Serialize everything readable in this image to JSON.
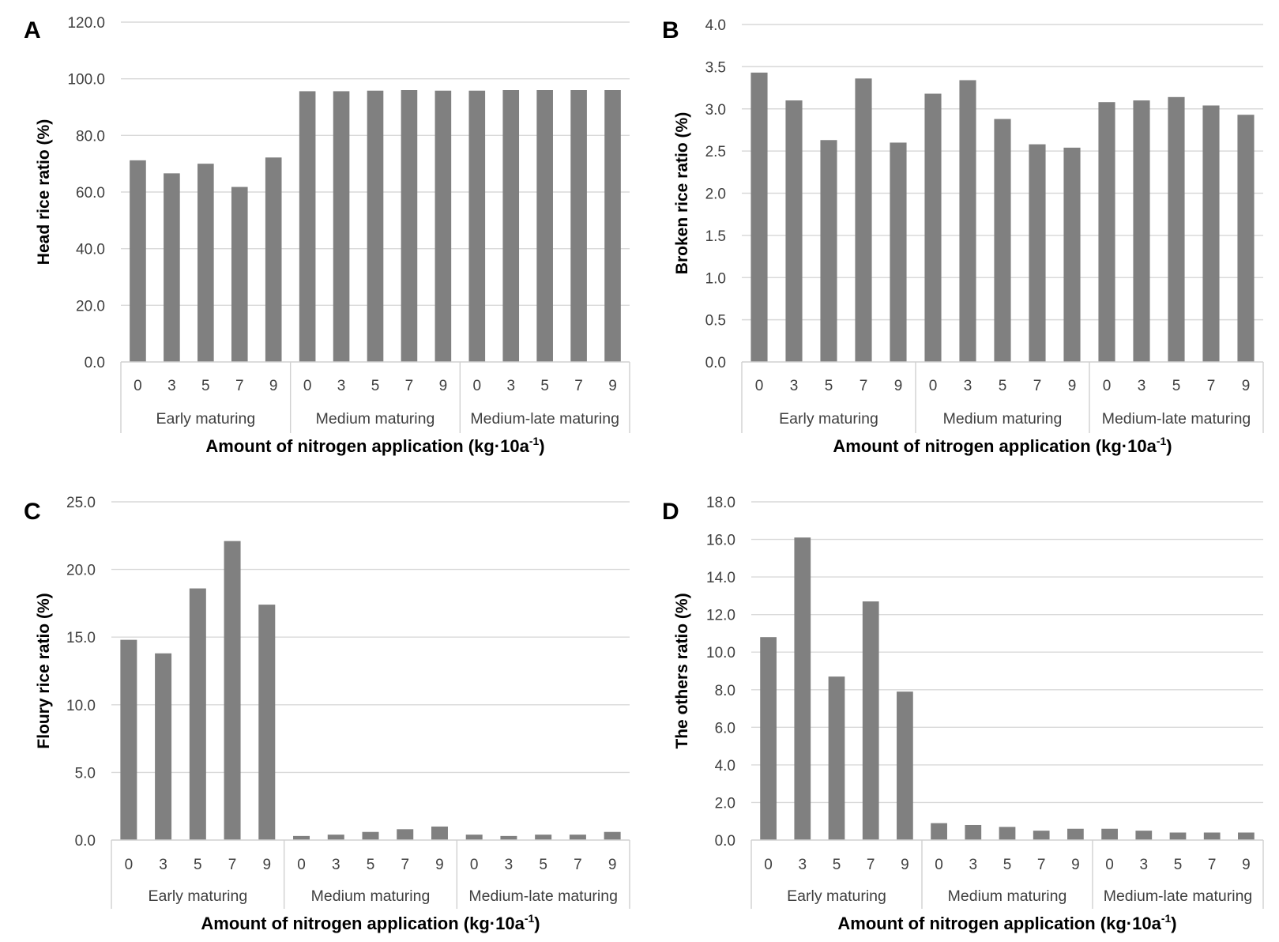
{
  "colors": {
    "bar": "#808080",
    "grid": "#d9d9d9",
    "axis": "#d0d0d0"
  },
  "chart_data": [
    {
      "panel": "A",
      "type": "bar",
      "categories": [
        "0",
        "3",
        "5",
        "7",
        "9",
        "0",
        "3",
        "5",
        "7",
        "9",
        "0",
        "3",
        "5",
        "7",
        "9"
      ],
      "groups": [
        "Early maturing",
        "Medium maturing",
        "Medium-late maturing"
      ],
      "values": [
        71.2,
        66.6,
        70.0,
        61.8,
        72.2,
        95.6,
        95.6,
        95.8,
        96.0,
        95.8,
        95.8,
        96.0,
        96.0,
        96.0,
        96.0
      ],
      "ylabel": "Head rice ratio (%)",
      "xlabel": "Amount of nitrogen application",
      "xlabel_unit_base": "(kg·10a",
      "xlabel_unit_exp": "-1",
      "xlabel_unit_close": ")",
      "ylim": [
        0,
        120
      ],
      "yticks": [
        "0.0",
        "20.0",
        "40.0",
        "60.0",
        "80.0",
        "100.0",
        "120.0"
      ],
      "grid": true
    },
    {
      "panel": "B",
      "type": "bar",
      "categories": [
        "0",
        "3",
        "5",
        "7",
        "9",
        "0",
        "3",
        "5",
        "7",
        "9",
        "0",
        "3",
        "5",
        "7",
        "9"
      ],
      "groups": [
        "Early maturing",
        "Medium maturing",
        "Medium-late maturing"
      ],
      "values": [
        3.43,
        3.1,
        2.63,
        3.36,
        2.6,
        3.18,
        3.34,
        2.88,
        2.58,
        2.54,
        3.08,
        3.1,
        3.14,
        3.04,
        2.93
      ],
      "ylabel": "Broken rice ratio (%)",
      "xlabel": "Amount of nitrogen application",
      "xlabel_unit_base": "(kg·10a",
      "xlabel_unit_exp": "-1",
      "xlabel_unit_close": ")",
      "ylim": [
        0,
        4
      ],
      "yticks": [
        "0.0",
        "0.5",
        "1.0",
        "1.5",
        "2.0",
        "2.5",
        "3.0",
        "3.5",
        "4.0"
      ],
      "grid": true
    },
    {
      "panel": "C",
      "type": "bar",
      "categories": [
        "0",
        "3",
        "5",
        "7",
        "9",
        "0",
        "3",
        "5",
        "7",
        "9",
        "0",
        "3",
        "5",
        "7",
        "9"
      ],
      "groups": [
        "Early maturing",
        "Medium maturing",
        "Medium-late maturing"
      ],
      "values": [
        14.8,
        13.8,
        18.6,
        22.1,
        17.4,
        0.3,
        0.4,
        0.6,
        0.8,
        1.0,
        0.4,
        0.3,
        0.4,
        0.4,
        0.6
      ],
      "ylabel": "Floury rice ratio (%)",
      "xlabel": "Amount of nitrogen application",
      "xlabel_unit_base": "(kg·10a",
      "xlabel_unit_exp": "-1",
      "xlabel_unit_close": ")",
      "ylim": [
        0,
        25
      ],
      "yticks": [
        "0.0",
        "5.0",
        "10.0",
        "15.0",
        "20.0",
        "25.0"
      ],
      "grid": true
    },
    {
      "panel": "D",
      "type": "bar",
      "categories": [
        "0",
        "3",
        "5",
        "7",
        "9",
        "0",
        "3",
        "5",
        "7",
        "9",
        "0",
        "3",
        "5",
        "7",
        "9"
      ],
      "groups": [
        "Early maturing",
        "Medium maturing",
        "Medium-late maturing"
      ],
      "values": [
        10.8,
        16.1,
        8.7,
        12.7,
        7.9,
        0.9,
        0.8,
        0.7,
        0.5,
        0.6,
        0.6,
        0.5,
        0.4,
        0.4,
        0.4
      ],
      "ylabel": "The others ratio (%)",
      "xlabel": "Amount of nitrogen application",
      "xlabel_unit_base": "(kg·10a",
      "xlabel_unit_exp": "-1",
      "xlabel_unit_close": ")",
      "ylim": [
        0,
        18
      ],
      "yticks": [
        "0.0",
        "2.0",
        "4.0",
        "6.0",
        "8.0",
        "10.0",
        "12.0",
        "14.0",
        "16.0",
        "18.0"
      ],
      "grid": true
    }
  ]
}
